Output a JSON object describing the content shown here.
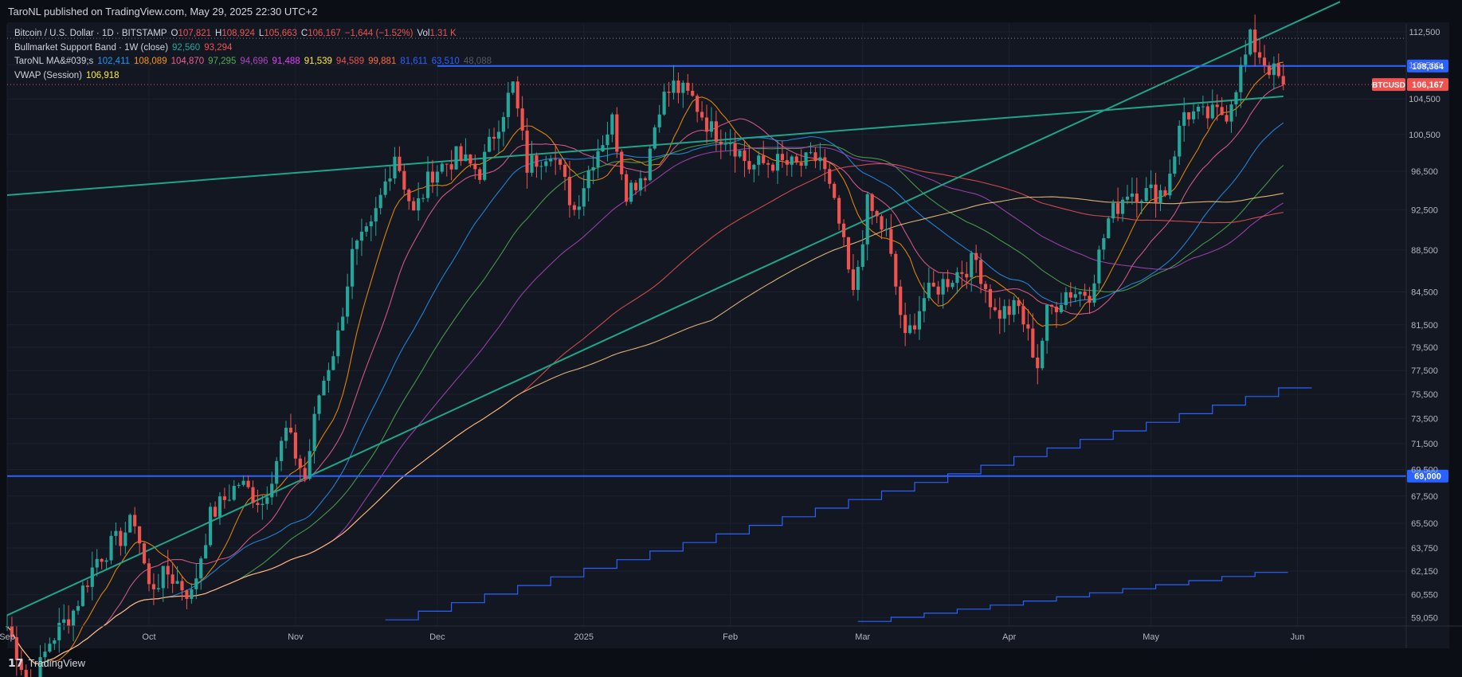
{
  "header": {
    "publisher": "TaroNL published on TradingView.com, May 29, 2025 22:30 UTC+2"
  },
  "legend": {
    "symbol": "Bitcoin / U.S. Dollar · 1D · BITSTAMP",
    "ohlc": {
      "o_label": "O",
      "o": "107,821",
      "h_label": "H",
      "h": "108,924",
      "l_label": "L",
      "l": "105,663",
      "c_label": "C",
      "c": "106,167",
      "chg": "−1,644 (−1.52%)",
      "vol_label": "Vol",
      "vol": "1.31 K"
    },
    "bmsb": {
      "label": "Bullmarket Support Band · 1W (close)",
      "v1": "92,560",
      "v2": "93,294"
    },
    "ma": {
      "label": "TaroNL MA&#039;s",
      "values": [
        "102,411",
        "108,089",
        "104,870",
        "97,295",
        "94,696",
        "91,488",
        "91,539",
        "94,589",
        "99,881",
        "81,611",
        "63,510",
        "48,088"
      ]
    },
    "vwap": {
      "label": "VWAP (Session)",
      "value": "106,918"
    }
  },
  "footer": {
    "brand": "TradingView"
  },
  "colors": {
    "up": "#26a69a",
    "down": "#ef5350",
    "hline": "#2962ff",
    "teal": "#1fa58a"
  },
  "chart_data": {
    "type": "candlestick",
    "symbol": "BTCUSD",
    "ylim": [
      58500,
      113500
    ],
    "y_ticks": [
      "112,500",
      "108,500",
      "104,500",
      "100,500",
      "96,500",
      "92,500",
      "88,500",
      "84,500",
      "81,500",
      "79,500",
      "77,500",
      "75,500",
      "73,500",
      "71,500",
      "69,500",
      "67,500",
      "65,500",
      "63,750",
      "62,150",
      "60,550",
      "59,050"
    ],
    "x_ticks": [
      "Sep",
      "Oct",
      "Nov",
      "Dec",
      "2025",
      "Feb",
      "Mar",
      "Apr",
      "May",
      "Jun"
    ],
    "x_tick_dates": [
      "2024-09-01",
      "2024-10-01",
      "2024-11-01",
      "2024-12-01",
      "2025-01-01",
      "2025-02-01",
      "2025-03-01",
      "2025-04-01",
      "2025-05-01",
      "2025-06-01"
    ],
    "price_label": {
      "text": "BTCUSD",
      "value": "106,167",
      "price": 106167
    },
    "hlines": [
      {
        "price": 108364,
        "label": "108,364",
        "from": "2024-12-01"
      },
      {
        "price": 69000,
        "label": "69,000",
        "from": "2024-09-01"
      }
    ],
    "trendlines": [
      {
        "from": [
          "2024-09-01",
          94000
        ],
        "to": [
          "2025-05-29",
          104800
        ]
      },
      {
        "from": [
          "2024-09-01",
          59200
        ],
        "to": [
          "2025-06-10",
          116300
        ]
      }
    ],
    "series_closes": [
      [
        "2024-09-01",
        58500
      ],
      [
        "2024-09-06",
        54500
      ],
      [
        "2024-09-10",
        57500
      ],
      [
        "2024-09-15",
        59500
      ],
      [
        "2024-09-20",
        63000
      ],
      [
        "2024-09-25",
        64500
      ],
      [
        "2024-09-28",
        65800
      ],
      [
        "2024-10-01",
        61000
      ],
      [
        "2024-10-05",
        62000
      ],
      [
        "2024-10-10",
        60500
      ],
      [
        "2024-10-14",
        66000
      ],
      [
        "2024-10-20",
        68500
      ],
      [
        "2024-10-25",
        67000
      ],
      [
        "2024-10-30",
        72500
      ],
      [
        "2024-11-03",
        68800
      ],
      [
        "2024-11-06",
        75500
      ],
      [
        "2024-11-10",
        80500
      ],
      [
        "2024-11-13",
        88000
      ],
      [
        "2024-11-17",
        90500
      ],
      [
        "2024-11-22",
        98500
      ],
      [
        "2024-11-26",
        92000
      ],
      [
        "2024-11-30",
        96500
      ],
      [
        "2024-12-05",
        98000
      ],
      [
        "2024-12-10",
        96500
      ],
      [
        "2024-12-14",
        102000
      ],
      [
        "2024-12-17",
        106000
      ],
      [
        "2024-12-20",
        97000
      ],
      [
        "2024-12-25",
        99000
      ],
      [
        "2024-12-30",
        92500
      ],
      [
        "2025-01-03",
        98000
      ],
      [
        "2025-01-07",
        102000
      ],
      [
        "2025-01-10",
        94500
      ],
      [
        "2025-01-14",
        96500
      ],
      [
        "2025-01-17",
        104000
      ],
      [
        "2025-01-20",
        106000
      ],
      [
        "2025-01-24",
        104500
      ],
      [
        "2025-01-28",
        101000
      ],
      [
        "2025-02-01",
        100000
      ],
      [
        "2025-02-05",
        97000
      ],
      [
        "2025-02-10",
        97500
      ],
      [
        "2025-02-15",
        97000
      ],
      [
        "2025-02-20",
        98000
      ],
      [
        "2025-02-24",
        91000
      ],
      [
        "2025-02-27",
        84000
      ],
      [
        "2025-03-02",
        93000
      ],
      [
        "2025-03-06",
        90000
      ],
      [
        "2025-03-10",
        80000
      ],
      [
        "2025-03-14",
        84000
      ],
      [
        "2025-03-20",
        86000
      ],
      [
        "2025-03-25",
        87500
      ],
      [
        "2025-03-29",
        82500
      ],
      [
        "2025-04-03",
        83000
      ],
      [
        "2025-04-07",
        78000
      ],
      [
        "2025-04-09",
        82500
      ],
      [
        "2025-04-13",
        84500
      ],
      [
        "2025-04-18",
        84500
      ],
      [
        "2025-04-22",
        91500
      ],
      [
        "2025-04-26",
        94500
      ],
      [
        "2025-04-30",
        94200
      ],
      [
        "2025-05-04",
        94500
      ],
      [
        "2025-05-08",
        103000
      ],
      [
        "2025-05-12",
        102500
      ],
      [
        "2025-05-17",
        103000
      ],
      [
        "2025-05-21",
        109500
      ],
      [
        "2025-05-22",
        111500
      ],
      [
        "2025-05-25",
        108900
      ],
      [
        "2025-05-29",
        106167
      ]
    ]
  }
}
